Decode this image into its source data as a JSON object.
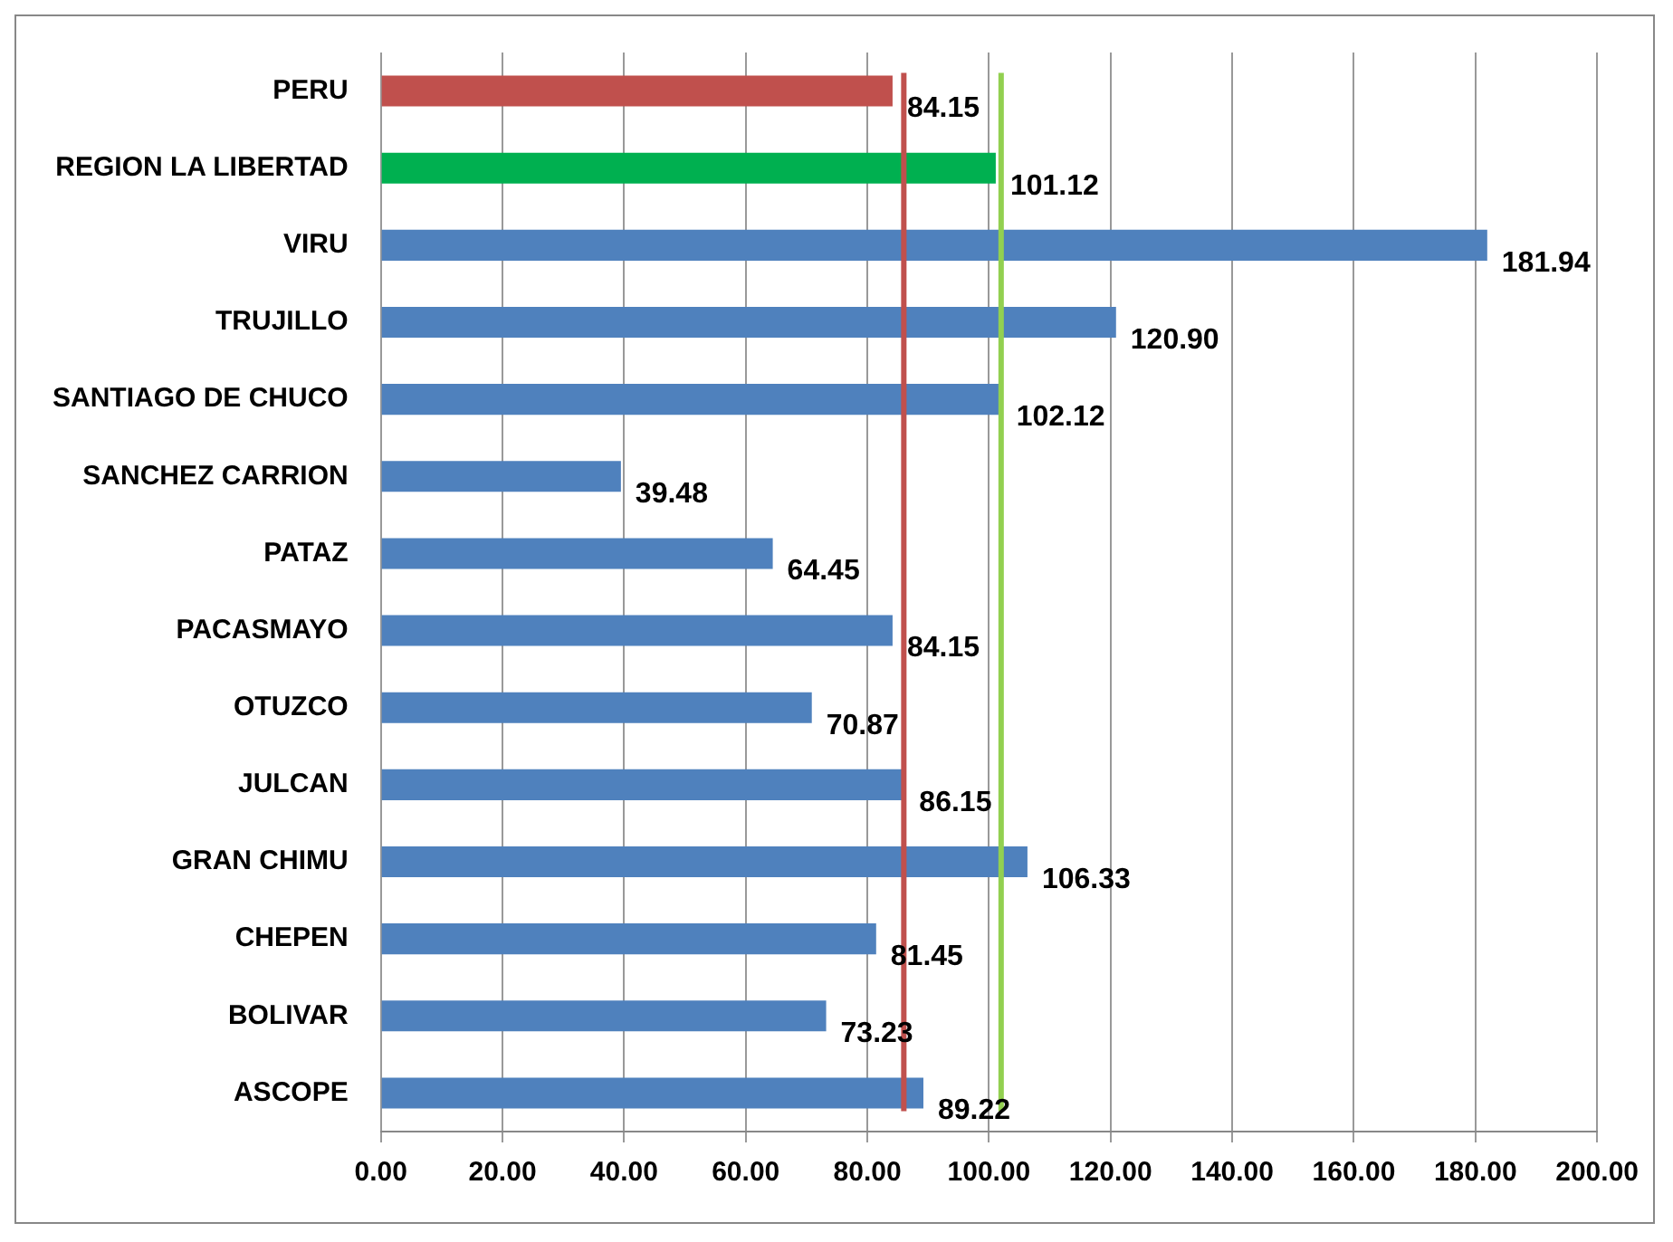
{
  "chart_data": {
    "type": "bar",
    "orientation": "horizontal",
    "categories": [
      "PERU",
      "REGION LA LIBERTAD",
      "VIRU",
      "TRUJILLO",
      "SANTIAGO DE CHUCO",
      "SANCHEZ CARRION",
      "PATAZ",
      "PACASMAYO",
      "OTUZCO",
      "JULCAN",
      "GRAN CHIMU",
      "CHEPEN",
      "BOLIVAR",
      "ASCOPE"
    ],
    "values": [
      84.15,
      101.12,
      181.94,
      120.9,
      102.12,
      39.48,
      64.45,
      84.15,
      70.87,
      86.15,
      106.33,
      81.45,
      73.23,
      89.22
    ],
    "value_labels": [
      "84.15",
      "101.12",
      "181.94",
      "120.90",
      "102.12",
      "39.48",
      "64.45",
      "84.15",
      "70.87",
      "86.15",
      "106.33",
      "81.45",
      "73.23",
      "89.22"
    ],
    "colors": [
      "#c0504d",
      "#00b050",
      "#4f81bd",
      "#4f81bd",
      "#4f81bd",
      "#4f81bd",
      "#4f81bd",
      "#4f81bd",
      "#4f81bd",
      "#4f81bd",
      "#4f81bd",
      "#4f81bd",
      "#4f81bd",
      "#4f81bd"
    ],
    "xlim": [
      0,
      200
    ],
    "xticks": [
      {
        "value": 0,
        "label": "0.00"
      },
      {
        "value": 20,
        "label": "20.00"
      },
      {
        "value": 40,
        "label": "40.00"
      },
      {
        "value": 60,
        "label": "60.00"
      },
      {
        "value": 80,
        "label": "80.00"
      },
      {
        "value": 100,
        "label": "100.00"
      },
      {
        "value": 120,
        "label": "120.00"
      },
      {
        "value": 140,
        "label": "140.00"
      },
      {
        "value": 160,
        "label": "160.00"
      },
      {
        "value": 180,
        "label": "180.00"
      },
      {
        "value": 200,
        "label": "200.00"
      }
    ],
    "grid": "x",
    "legend": false,
    "ref_lines": [
      {
        "axis": "x",
        "value": 86,
        "color": "#c0504d"
      },
      {
        "axis": "x",
        "value": 102,
        "color": "#92d050"
      }
    ]
  }
}
